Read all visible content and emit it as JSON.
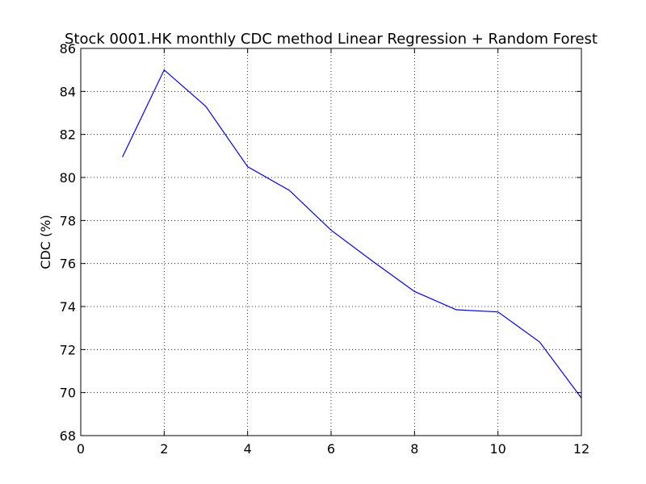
{
  "chart_data": {
    "type": "line",
    "title": "Stock 0001.HK monthly CDC method Linear Regression + Random Forest",
    "xlabel": "",
    "ylabel": "CDC (%)",
    "xlim": [
      0,
      12
    ],
    "ylim": [
      68,
      86
    ],
    "xticks": [
      "0",
      "2",
      "4",
      "6",
      "8",
      "10",
      "12"
    ],
    "yticks": [
      "68",
      "70",
      "72",
      "74",
      "76",
      "78",
      "80",
      "82",
      "84",
      "86"
    ],
    "grid": true,
    "series": [
      {
        "color": "#0000ff",
        "x": [
          1,
          2,
          3,
          4,
          5,
          6,
          7,
          8,
          9,
          10,
          11,
          12
        ],
        "values": [
          80.95,
          85.0,
          83.3,
          80.5,
          79.4,
          77.55,
          76.1,
          74.7,
          73.85,
          73.75,
          72.35,
          69.75
        ]
      }
    ]
  }
}
